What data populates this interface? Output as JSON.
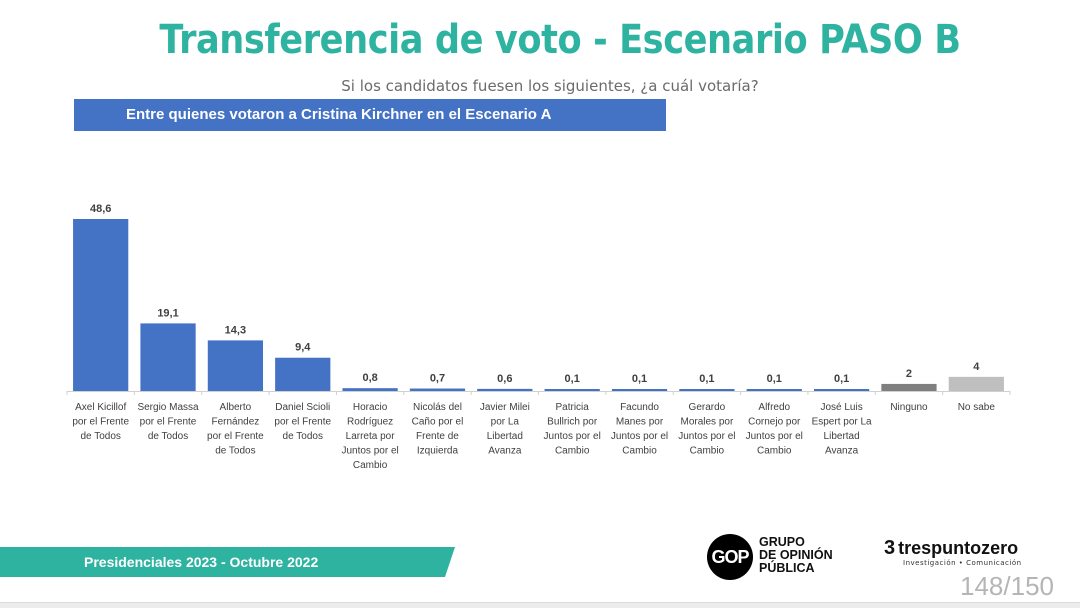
{
  "title": "Transferencia de voto - Escenario PASO B",
  "subtitle": "Si los candidatos fuesen los siguientes, ¿a cuál votaría?",
  "banner": "Entre quienes votaron a Cristina Kirchner en el Escenario A",
  "footer": {
    "label": "Presidenciales 2023 - Octubre 2022",
    "gop_logo_mark": "GOP",
    "gop_lines": [
      "GRUPO",
      "DE OPINIÓN",
      "PÚBLICA"
    ],
    "tres_logo_mark": "3",
    "tres_name": "trespuntozero",
    "tres_tagline": "Investigación • Comunicación",
    "page_number": "148/150"
  },
  "colors": {
    "title": "#2fb3a1",
    "banner": "#4472c4",
    "bar_candidate": "#4472c4",
    "bar_ninguno": "#7f7f7f",
    "bar_nosabe": "#bfbfbf",
    "footer_band": "#2fb3a1"
  },
  "chart_data": {
    "type": "bar",
    "title": "Entre quienes votaron a Cristina Kirchner en el Escenario A",
    "xlabel": "",
    "ylabel": "",
    "ylim": [
      0,
      50
    ],
    "grid": false,
    "legend": "none",
    "categories": [
      [
        "Axel Kicillof",
        "por el Frente",
        "de Todos"
      ],
      [
        "Sergio Massa",
        "por el Frente",
        "de Todos"
      ],
      [
        "Alberto",
        "Fernández",
        "por el Frente",
        "de Todos"
      ],
      [
        "Daniel Scioli",
        "por el Frente",
        "de Todos"
      ],
      [
        "Horacio",
        "Rodríguez",
        "Larreta por",
        "Juntos por el",
        "Cambio"
      ],
      [
        "Nicolás del",
        "Caño por el",
        "Frente de",
        "Izquierda"
      ],
      [
        "Javier Milei",
        "por La",
        "Libertad",
        "Avanza"
      ],
      [
        "Patricia",
        "Bullrich por",
        "Juntos por el",
        "Cambio"
      ],
      [
        "Facundo",
        "Manes por",
        "Juntos por el",
        "Cambio"
      ],
      [
        "Gerardo",
        "Morales por",
        "Juntos por el",
        "Cambio"
      ],
      [
        "Alfredo",
        "Cornejo por",
        "Juntos por el",
        "Cambio"
      ],
      [
        "José Luis",
        "Espert por La",
        "Libertad",
        "Avanza"
      ],
      [
        "Ninguno"
      ],
      [
        "No sabe"
      ]
    ],
    "values": [
      48.6,
      19.1,
      14.3,
      9.4,
      0.8,
      0.7,
      0.6,
      0.1,
      0.1,
      0.1,
      0.1,
      0.1,
      2,
      4
    ],
    "labels": [
      "48,6",
      "19,1",
      "14,3",
      "9,4",
      "0,8",
      "0,7",
      "0,6",
      "0,1",
      "0,1",
      "0,1",
      "0,1",
      "0,1",
      "2",
      "4"
    ],
    "bar_color_keys": [
      "bar_candidate",
      "bar_candidate",
      "bar_candidate",
      "bar_candidate",
      "bar_candidate",
      "bar_candidate",
      "bar_candidate",
      "bar_candidate",
      "bar_candidate",
      "bar_candidate",
      "bar_candidate",
      "bar_candidate",
      "bar_ninguno",
      "bar_nosabe"
    ]
  }
}
